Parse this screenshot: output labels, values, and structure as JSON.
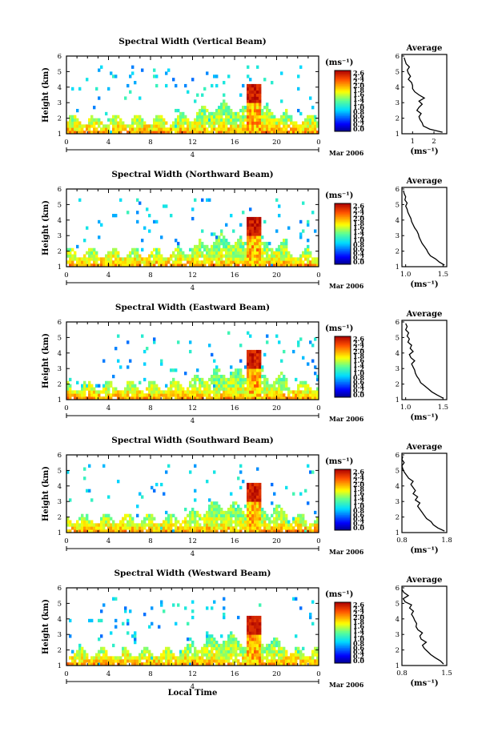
{
  "chart_data": [
    {
      "type": "heatmap",
      "title": "Spectral Width (Vertical Beam)",
      "xlabel": "",
      "ylabel": "Height (km)",
      "xlim": [
        0,
        24
      ],
      "ylim": [
        1,
        6
      ],
      "x_ticks": [
        "0",
        "4",
        "8",
        "12",
        "16",
        "20",
        "0"
      ],
      "y_ticks": [
        "1",
        "2",
        "3",
        "4",
        "5",
        "6"
      ],
      "date_marker": "4",
      "date_label": "Mar 2006",
      "colorbar": {
        "unit": "(ms⁻¹)",
        "ticks": [
          "2.6",
          "2.4",
          "2.2",
          "2.0",
          "1.8",
          "1.6",
          "1.4",
          "1.2",
          "1.0",
          "0.8",
          "0.6",
          "0.4",
          "0.2",
          "0.0"
        ]
      },
      "profile": {
        "title": "Average",
        "xlabel": "(ms⁻¹)",
        "x_ticks": [
          "1",
          "2"
        ],
        "xlim": [
          0.5,
          2.6
        ],
        "heights": [
          1.1,
          1.3,
          1.5,
          1.7,
          1.9,
          2.1,
          2.3,
          2.5,
          2.7,
          2.9,
          3.1,
          3.3,
          3.5,
          3.7,
          3.9,
          4.1,
          4.3,
          4.5,
          4.7,
          4.9,
          5.1,
          5.3,
          5.5,
          5.7,
          5.9
        ],
        "values": [
          2.4,
          1.8,
          1.5,
          1.45,
          1.35,
          1.3,
          1.4,
          1.2,
          1.3,
          1.45,
          1.3,
          1.55,
          1.3,
          1.1,
          1.0,
          1.0,
          0.95,
          0.8,
          0.9,
          0.8,
          0.75,
          0.85,
          0.7,
          0.65,
          0.6
        ]
      }
    },
    {
      "type": "heatmap",
      "title": "Spectral Width (Northward Beam)",
      "xlabel": "",
      "ylabel": "Height (km)",
      "xlim": [
        0,
        24
      ],
      "ylim": [
        1,
        6
      ],
      "x_ticks": [
        "0",
        "4",
        "8",
        "12",
        "16",
        "20",
        "0"
      ],
      "y_ticks": [
        "1",
        "2",
        "3",
        "4",
        "5",
        "6"
      ],
      "date_marker": "4",
      "date_label": "Mar 2006",
      "colorbar": {
        "unit": "(ms⁻¹)",
        "ticks": [
          "2.6",
          "2.4",
          "2.2",
          "2.0",
          "1.8",
          "1.6",
          "1.4",
          "1.2",
          "1.0",
          "0.8",
          "0.6",
          "0.4",
          "0.2",
          "0.0"
        ]
      },
      "profile": {
        "title": "Average",
        "xlabel": "(ms⁻¹)",
        "x_ticks": [
          "1.0",
          "1.5"
        ],
        "xlim": [
          0.95,
          1.55
        ],
        "heights": [
          1.1,
          1.3,
          1.5,
          1.7,
          1.9,
          2.1,
          2.3,
          2.5,
          2.7,
          2.9,
          3.1,
          3.3,
          3.5,
          3.7,
          3.9,
          4.1,
          4.3,
          4.5,
          4.7,
          4.9,
          5.1,
          5.3,
          5.5,
          5.7,
          5.9
        ],
        "values": [
          1.52,
          1.45,
          1.4,
          1.33,
          1.3,
          1.28,
          1.25,
          1.22,
          1.2,
          1.18,
          1.17,
          1.15,
          1.12,
          1.1,
          1.08,
          1.07,
          1.05,
          1.03,
          1.02,
          1.0,
          1.02,
          0.99,
          1.0,
          0.98,
          0.97
        ]
      }
    },
    {
      "type": "heatmap",
      "title": "Spectral Width (Eastward Beam)",
      "xlabel": "",
      "ylabel": "Height (km)",
      "xlim": [
        0,
        24
      ],
      "ylim": [
        1,
        6
      ],
      "x_ticks": [
        "0",
        "4",
        "8",
        "12",
        "16",
        "20",
        "0"
      ],
      "y_ticks": [
        "1",
        "2",
        "3",
        "4",
        "5",
        "6"
      ],
      "date_marker": "4",
      "date_label": "Mar 2006",
      "colorbar": {
        "unit": "(ms⁻¹)",
        "ticks": [
          "2.6",
          "2.4",
          "2.2",
          "2.0",
          "1.8",
          "1.6",
          "1.4",
          "1.2",
          "1.0",
          "0.8",
          "0.6",
          "0.4",
          "0.2",
          "0.0"
        ]
      },
      "profile": {
        "title": "Average",
        "xlabel": "(ms⁻¹)",
        "x_ticks": [
          "1.0",
          "1.5"
        ],
        "xlim": [
          0.95,
          1.55
        ],
        "heights": [
          1.1,
          1.3,
          1.5,
          1.7,
          1.9,
          2.1,
          2.3,
          2.5,
          2.7,
          2.9,
          3.1,
          3.3,
          3.5,
          3.7,
          3.9,
          4.1,
          4.3,
          4.5,
          4.7,
          4.9,
          5.1,
          5.3,
          5.5,
          5.7,
          5.9
        ],
        "values": [
          1.5,
          1.42,
          1.35,
          1.3,
          1.25,
          1.2,
          1.18,
          1.15,
          1.13,
          1.12,
          1.1,
          1.08,
          1.12,
          1.07,
          1.05,
          1.1,
          1.06,
          1.08,
          1.03,
          1.05,
          1.02,
          1.04,
          1.0,
          1.02,
          1.0
        ]
      }
    },
    {
      "type": "heatmap",
      "title": "Spectral Width (Southward Beam)",
      "xlabel": "",
      "ylabel": "Height (km)",
      "xlim": [
        0,
        24
      ],
      "ylim": [
        1,
        6
      ],
      "x_ticks": [
        "0",
        "4",
        "8",
        "12",
        "16",
        "20",
        "0"
      ],
      "y_ticks": [
        "1",
        "2",
        "3",
        "4",
        "5",
        "6"
      ],
      "date_marker": "4",
      "date_label": "Mar 2006",
      "colorbar": {
        "unit": "(ms⁻¹)",
        "ticks": [
          "2.6",
          "2.4",
          "2.2",
          "2.0",
          "1.8",
          "1.6",
          "1.4",
          "1.2",
          "1.0",
          "0.8",
          "0.6",
          "0.4",
          "0.2",
          "0.0"
        ]
      },
      "profile": {
        "title": "Average",
        "xlabel": "(ms⁻¹)",
        "x_ticks": [
          "0.8",
          "1.8"
        ],
        "xlim": [
          0.8,
          1.8
        ],
        "heights": [
          1.1,
          1.3,
          1.5,
          1.7,
          1.9,
          2.1,
          2.3,
          2.5,
          2.7,
          2.9,
          3.1,
          3.3,
          3.5,
          3.7,
          3.9,
          4.1,
          4.3,
          4.5,
          4.7,
          4.9,
          5.1,
          5.3,
          5.5,
          5.7,
          5.9
        ],
        "values": [
          1.75,
          1.6,
          1.5,
          1.45,
          1.35,
          1.3,
          1.25,
          1.2,
          1.15,
          1.2,
          1.1,
          1.15,
          1.05,
          1.1,
          1.05,
          1.0,
          1.05,
          0.95,
          0.9,
          0.85,
          0.82,
          0.8,
          0.85,
          0.8,
          0.82
        ]
      }
    },
    {
      "type": "heatmap",
      "title": "Spectral Width (Westward Beam)",
      "xlabel": "Local Time",
      "ylabel": "Height (km)",
      "xlim": [
        0,
        24
      ],
      "ylim": [
        1,
        6
      ],
      "x_ticks": [
        "0",
        "4",
        "8",
        "12",
        "16",
        "20",
        "0"
      ],
      "y_ticks": [
        "1",
        "2",
        "3",
        "4",
        "5",
        "6"
      ],
      "date_marker": "4",
      "date_label": "Mar 2006",
      "colorbar": {
        "unit": "(ms⁻¹)",
        "ticks": [
          "2.6",
          "2.4",
          "2.2",
          "2.0",
          "1.8",
          "1.6",
          "1.4",
          "1.2",
          "1.0",
          "0.8",
          "0.6",
          "0.4",
          "0.2",
          "0.0"
        ]
      },
      "profile": {
        "title": "Average",
        "xlabel": "(ms⁻¹)",
        "x_ticks": [
          "0.8",
          "1.5"
        ],
        "xlim": [
          0.8,
          1.5
        ],
        "heights": [
          1.1,
          1.3,
          1.5,
          1.7,
          1.9,
          2.1,
          2.3,
          2.5,
          2.7,
          2.9,
          3.1,
          3.3,
          3.5,
          3.7,
          3.9,
          4.1,
          4.3,
          4.5,
          4.7,
          4.9,
          5.1,
          5.3,
          5.5,
          5.7,
          5.9
        ],
        "values": [
          1.45,
          1.4,
          1.32,
          1.25,
          1.2,
          1.15,
          1.12,
          1.18,
          1.1,
          1.08,
          1.12,
          1.05,
          1.02,
          1.03,
          1.0,
          0.98,
          0.95,
          0.98,
          0.92,
          0.95,
          0.85,
          0.82,
          0.9,
          0.83,
          0.8
        ]
      }
    }
  ]
}
